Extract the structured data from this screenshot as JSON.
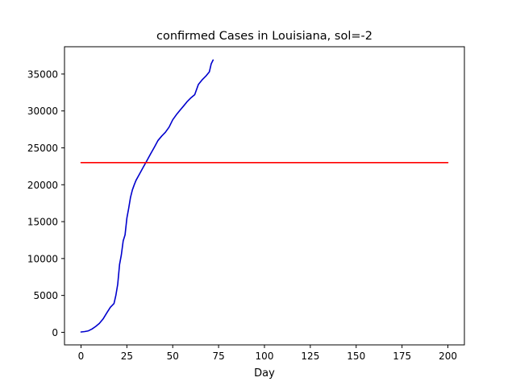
{
  "chart_data": {
    "type": "line",
    "title": "confirmed Cases in Louisiana, sol=-2",
    "xlabel": "Day",
    "ylabel": "",
    "xlim": [
      -9,
      209
    ],
    "ylim": [
      -1700,
      38700
    ],
    "xticks": [
      0,
      25,
      50,
      75,
      100,
      125,
      150,
      175,
      200
    ],
    "yticks": [
      0,
      5000,
      10000,
      15000,
      20000,
      25000,
      30000,
      35000
    ],
    "grid": false,
    "legend": "none",
    "series": [
      {
        "color": "#0000cd",
        "x": [
          0,
          2,
          4,
          6,
          8,
          10,
          12,
          14,
          16,
          18,
          19,
          20,
          21,
          22,
          23,
          24,
          25,
          26,
          27,
          28,
          29,
          30,
          32,
          34,
          36,
          38,
          40,
          42,
          44,
          46,
          48,
          50,
          52,
          54,
          56,
          58,
          60,
          62,
          64,
          66,
          68,
          70,
          71,
          72
        ],
        "y": [
          50,
          100,
          200,
          450,
          800,
          1200,
          1800,
          2600,
          3400,
          3900,
          5000,
          6500,
          9200,
          10500,
          12400,
          13200,
          15500,
          16800,
          18300,
          19300,
          20000,
          20600,
          21500,
          22400,
          23300,
          24200,
          25100,
          26000,
          26600,
          27100,
          27800,
          28800,
          29500,
          30100,
          30700,
          31300,
          31800,
          32200,
          33600,
          34200,
          34700,
          35300,
          36400,
          36900
        ]
      },
      {
        "color": "#ff0000",
        "x": [
          0,
          200
        ],
        "y": [
          23000,
          23000
        ]
      }
    ]
  }
}
